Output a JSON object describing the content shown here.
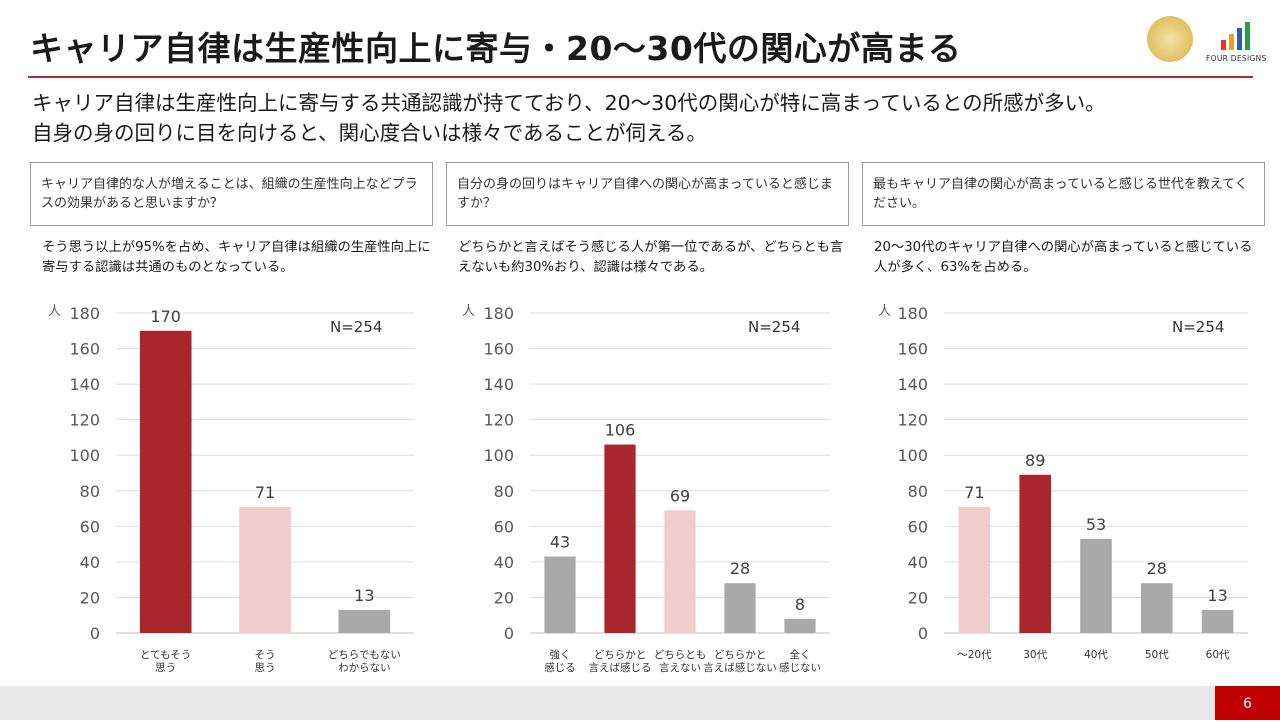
{
  "header": {
    "title": "キャリア自律は生産性向上に寄与・20～30代の関心が高まる",
    "subtitle_lines": [
      "キャリア自律は生産性向上に寄与する共通認識が持てており、20～30代の関心が特に高まっているとの所感が多い。",
      "自身の身の回りに目を向けると、関心度合いは様々であることが伺える。"
    ]
  },
  "logo": {
    "text": "FOUR DESIGNS"
  },
  "colors": {
    "dark_red": "#a8262c",
    "pink": "#f0cccd",
    "gray": "#a9a9a9",
    "accent_red": "#c00000"
  },
  "panels": [
    {
      "question": "キャリア自律的な人が増えることは、組織の生産性向上などプラスの効果があると思いますか？",
      "answer": "そう思う以上が95%を占め、キャリア自律は組織の生産性向上に寄与する認識は共通のものとなっている。"
    },
    {
      "question": "自分の身の回りはキャリア自律への関心が高まっていると感じますか？",
      "answer": "どちらかと言えばそう感じる人が第一位であるが、どちらとも言えないも約30%おり、認識は様々である。"
    },
    {
      "question": "最もキャリア自律の関心が高まっていると感じる世代を教えてください。",
      "answer": "20～30代のキャリア自律への関心が高まっていると感じている人が多く、63%を占める。"
    }
  ],
  "chart_data": [
    {
      "type": "bar",
      "unit_label": "人",
      "n_label": "N=254",
      "ylim": [
        0,
        180
      ],
      "yticks": [
        0,
        20,
        40,
        60,
        80,
        100,
        120,
        140,
        160,
        180
      ],
      "categories": [
        [
          "とてもそう",
          "思う"
        ],
        [
          "そう",
          "思う"
        ],
        [
          "どちらでもない",
          "わからない"
        ]
      ],
      "values": [
        170,
        71,
        13
      ],
      "colors": [
        "dark_red",
        "pink",
        "gray"
      ]
    },
    {
      "type": "bar",
      "unit_label": "人",
      "n_label": "N=254",
      "ylim": [
        0,
        180
      ],
      "yticks": [
        0,
        20,
        40,
        60,
        80,
        100,
        120,
        140,
        160,
        180
      ],
      "categories": [
        [
          "強く",
          "感じる"
        ],
        [
          "どちらかと",
          "言えば感じる"
        ],
        [
          "どちらとも",
          "言えない"
        ],
        [
          "どちらかと",
          "言えば感じない"
        ],
        [
          "全く",
          "感じない"
        ]
      ],
      "values": [
        43,
        106,
        69,
        28,
        8
      ],
      "colors": [
        "gray",
        "dark_red",
        "pink",
        "gray",
        "gray"
      ]
    },
    {
      "type": "bar",
      "unit_label": "人",
      "n_label": "N=254",
      "ylim": [
        0,
        180
      ],
      "yticks": [
        0,
        20,
        40,
        60,
        80,
        100,
        120,
        140,
        160,
        180
      ],
      "categories": [
        [
          "～20代"
        ],
        [
          "30代"
        ],
        [
          "40代"
        ],
        [
          "50代"
        ],
        [
          "60代"
        ]
      ],
      "values": [
        71,
        89,
        53,
        28,
        13
      ],
      "colors": [
        "pink",
        "dark_red",
        "gray",
        "gray",
        "gray"
      ]
    }
  ],
  "footer": {
    "page": "6"
  }
}
